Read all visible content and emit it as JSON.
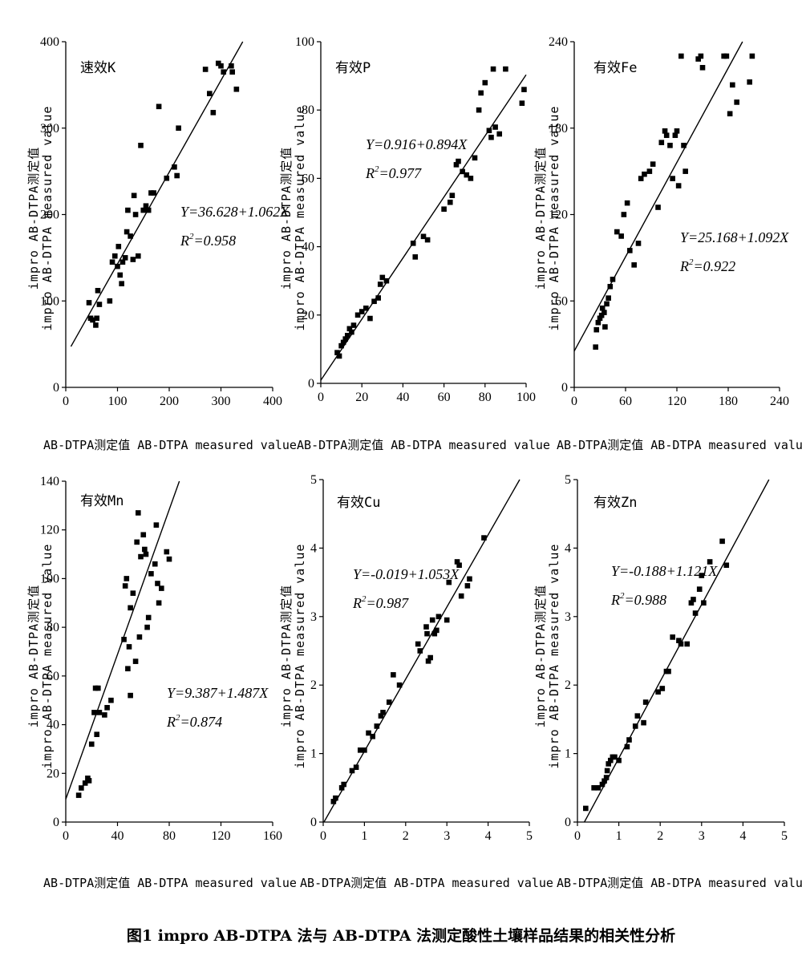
{
  "figure": {
    "caption": "图1  impro AB-DTPA 法与 AB-DTPA 法测定酸性土壤样品结果的相关性分析"
  },
  "chart_data": [
    {
      "type": "scatter",
      "title": "速效K",
      "xlabel": "AB-DTPA测定值 AB-DTPA measured value",
      "ylabel_lines": [
        "impro AB-DTPA测定值",
        "impro AB-DTPA measured value"
      ],
      "xlim": [
        0,
        400
      ],
      "ylim": [
        0,
        400
      ],
      "xticks": [
        0,
        100,
        200,
        300,
        400
      ],
      "yticks": [
        0,
        100,
        200,
        300,
        400
      ],
      "equation": "Y=36.628+1.062X",
      "r2_prefix": "R",
      "r2_value": "=0.958",
      "fit": {
        "intercept": 36.628,
        "slope": 1.062
      },
      "points": [
        [
          45,
          98
        ],
        [
          48,
          80
        ],
        [
          52,
          78
        ],
        [
          58,
          72
        ],
        [
          60,
          80
        ],
        [
          62,
          112
        ],
        [
          65,
          96
        ],
        [
          85,
          100
        ],
        [
          90,
          145
        ],
        [
          95,
          152
        ],
        [
          100,
          140
        ],
        [
          102,
          163
        ],
        [
          105,
          130
        ],
        [
          108,
          120
        ],
        [
          110,
          145
        ],
        [
          115,
          150
        ],
        [
          118,
          180
        ],
        [
          120,
          205
        ],
        [
          125,
          175
        ],
        [
          130,
          148
        ],
        [
          132,
          222
        ],
        [
          135,
          200
        ],
        [
          140,
          152
        ],
        [
          145,
          280
        ],
        [
          150,
          205
        ],
        [
          155,
          210
        ],
        [
          160,
          205
        ],
        [
          165,
          225
        ],
        [
          170,
          225
        ],
        [
          180,
          325
        ],
        [
          195,
          242
        ],
        [
          210,
          255
        ],
        [
          215,
          245
        ],
        [
          218,
          300
        ],
        [
          270,
          368
        ],
        [
          278,
          340
        ],
        [
          285,
          318
        ],
        [
          295,
          375
        ],
        [
          300,
          372
        ],
        [
          305,
          365
        ],
        [
          320,
          372
        ],
        [
          322,
          365
        ],
        [
          330,
          345
        ]
      ]
    },
    {
      "type": "scatter",
      "title": "有效P",
      "xlabel": "AB-DTPA测定值 AB-DTPA measured value",
      "ylabel_lines": [
        "impro AB-DTPA测定值",
        "impro AB-DTPA measured value"
      ],
      "xlim": [
        0,
        100
      ],
      "ylim": [
        0,
        100
      ],
      "xticks": [
        0,
        20,
        40,
        60,
        80,
        100
      ],
      "yticks": [
        0,
        20,
        40,
        60,
        80,
        100
      ],
      "equation": "Y=0.916+0.894X",
      "r2_prefix": "R",
      "r2_value": "=0.977",
      "fit": {
        "intercept": 0.916,
        "slope": 0.894
      },
      "points": [
        [
          8,
          9
        ],
        [
          9,
          8
        ],
        [
          10,
          11
        ],
        [
          11,
          12
        ],
        [
          12,
          13
        ],
        [
          13,
          14
        ],
        [
          14,
          16
        ],
        [
          15,
          15
        ],
        [
          16,
          17
        ],
        [
          18,
          20
        ],
        [
          20,
          21
        ],
        [
          22,
          22
        ],
        [
          24,
          19
        ],
        [
          26,
          24
        ],
        [
          28,
          25
        ],
        [
          29,
          29
        ],
        [
          30,
          31
        ],
        [
          32,
          30
        ],
        [
          45,
          41
        ],
        [
          46,
          37
        ],
        [
          50,
          43
        ],
        [
          52,
          42
        ],
        [
          60,
          51
        ],
        [
          63,
          53
        ],
        [
          64,
          55
        ],
        [
          66,
          64
        ],
        [
          67,
          65
        ],
        [
          69,
          62
        ],
        [
          71,
          61
        ],
        [
          73,
          60
        ],
        [
          75,
          66
        ],
        [
          77,
          80
        ],
        [
          78,
          85
        ],
        [
          80,
          88
        ],
        [
          82,
          74
        ],
        [
          83,
          72
        ],
        [
          84,
          92
        ],
        [
          85,
          75
        ],
        [
          87,
          73
        ],
        [
          90,
          92
        ],
        [
          98,
          82
        ],
        [
          99,
          86
        ]
      ]
    },
    {
      "type": "scatter",
      "title": "有效Fe",
      "xlabel": "AB-DTPA测定值 AB-DTPA measured value",
      "ylabel_lines": [
        "impro AB-DTPA测定值",
        "impro AB-DTPA measured value"
      ],
      "xlim": [
        0,
        240
      ],
      "ylim": [
        0,
        240
      ],
      "xticks": [
        0,
        60,
        120,
        180,
        240
      ],
      "yticks": [
        0,
        60,
        120,
        180,
        240
      ],
      "equation": "Y=25.168+1.092X",
      "r2_prefix": "R",
      "r2_value": "=0.922",
      "fit": {
        "intercept": 25.168,
        "slope": 1.092
      },
      "points": [
        [
          25,
          28
        ],
        [
          26,
          40
        ],
        [
          28,
          45
        ],
        [
          30,
          48
        ],
        [
          32,
          50
        ],
        [
          33,
          55
        ],
        [
          35,
          52
        ],
        [
          36,
          42
        ],
        [
          38,
          58
        ],
        [
          40,
          62
        ],
        [
          42,
          70
        ],
        [
          45,
          75
        ],
        [
          50,
          108
        ],
        [
          55,
          105
        ],
        [
          58,
          120
        ],
        [
          62,
          128
        ],
        [
          65,
          95
        ],
        [
          70,
          85
        ],
        [
          75,
          100
        ],
        [
          78,
          145
        ],
        [
          82,
          148
        ],
        [
          88,
          150
        ],
        [
          92,
          155
        ],
        [
          98,
          125
        ],
        [
          102,
          170
        ],
        [
          106,
          178
        ],
        [
          108,
          175
        ],
        [
          112,
          168
        ],
        [
          115,
          145
        ],
        [
          118,
          175
        ],
        [
          120,
          178
        ],
        [
          122,
          140
        ],
        [
          125,
          230
        ],
        [
          128,
          168
        ],
        [
          130,
          150
        ],
        [
          145,
          228
        ],
        [
          148,
          230
        ],
        [
          150,
          222
        ],
        [
          175,
          230
        ],
        [
          178,
          230
        ],
        [
          182,
          190
        ],
        [
          185,
          210
        ],
        [
          190,
          198
        ],
        [
          205,
          212
        ],
        [
          208,
          230
        ]
      ]
    },
    {
      "type": "scatter",
      "title": "有效Mn",
      "xlabel": "AB-DTPA测定值 AB-DTPA measured value",
      "ylabel_lines": [
        "impro AB-DTPA测定值",
        "impro AB-DTPA measured value"
      ],
      "xlim": [
        0,
        160
      ],
      "ylim": [
        0,
        140
      ],
      "xticks": [
        0,
        40,
        80,
        120,
        160
      ],
      "yticks": [
        0,
        20,
        40,
        60,
        80,
        100,
        120,
        140
      ],
      "equation": "Y=9.387+1.487X",
      "r2_prefix": "R",
      "r2_value": "=0.874",
      "fit": {
        "intercept": 9.387,
        "slope": 1.487
      },
      "points": [
        [
          10,
          11
        ],
        [
          12,
          14
        ],
        [
          15,
          16
        ],
        [
          17,
          18
        ],
        [
          18,
          17
        ],
        [
          20,
          32
        ],
        [
          22,
          45
        ],
        [
          23,
          55
        ],
        [
          24,
          36
        ],
        [
          25,
          55
        ],
        [
          26,
          45
        ],
        [
          30,
          44
        ],
        [
          32,
          47
        ],
        [
          35,
          50
        ],
        [
          45,
          75
        ],
        [
          46,
          97
        ],
        [
          47,
          100
        ],
        [
          48,
          63
        ],
        [
          49,
          72
        ],
        [
          50,
          88
        ],
        [
          50,
          52
        ],
        [
          52,
          94
        ],
        [
          54,
          66
        ],
        [
          55,
          115
        ],
        [
          56,
          127
        ],
        [
          57,
          76
        ],
        [
          58,
          109
        ],
        [
          60,
          118
        ],
        [
          61,
          112
        ],
        [
          62,
          110
        ],
        [
          63,
          80
        ],
        [
          64,
          84
        ],
        [
          66,
          102
        ],
        [
          69,
          106
        ],
        [
          70,
          122
        ],
        [
          71,
          98
        ],
        [
          72,
          90
        ],
        [
          74,
          96
        ],
        [
          78,
          111
        ],
        [
          80,
          108
        ]
      ]
    },
    {
      "type": "scatter",
      "title": "有效Cu",
      "xlabel": "AB-DTPA测定值 AB-DTPA measured value",
      "ylabel_lines": [
        "impro AB-DTPA测定值",
        "impro AB-DTPA measured value"
      ],
      "xlim": [
        0,
        5
      ],
      "ylim": [
        0,
        5
      ],
      "xticks": [
        0,
        1,
        2,
        3,
        4,
        5
      ],
      "yticks": [
        0,
        1,
        2,
        3,
        4,
        5
      ],
      "equation": "Y=-0.019+1.053X",
      "r2_prefix": "R",
      "r2_value": "=0.987",
      "fit": {
        "intercept": -0.019,
        "slope": 1.053
      },
      "points": [
        [
          0.25,
          0.3
        ],
        [
          0.3,
          0.35
        ],
        [
          0.45,
          0.5
        ],
        [
          0.5,
          0.55
        ],
        [
          0.7,
          0.75
        ],
        [
          0.8,
          0.8
        ],
        [
          0.9,
          1.05
        ],
        [
          1.0,
          1.05
        ],
        [
          1.1,
          1.3
        ],
        [
          1.2,
          1.25
        ],
        [
          1.3,
          1.4
        ],
        [
          1.4,
          1.55
        ],
        [
          1.45,
          1.6
        ],
        [
          1.6,
          1.75
        ],
        [
          1.7,
          2.15
        ],
        [
          1.85,
          2.0
        ],
        [
          2.3,
          2.6
        ],
        [
          2.35,
          2.5
        ],
        [
          2.5,
          2.85
        ],
        [
          2.52,
          2.75
        ],
        [
          2.55,
          2.35
        ],
        [
          2.6,
          2.4
        ],
        [
          2.65,
          2.95
        ],
        [
          2.7,
          2.75
        ],
        [
          2.75,
          2.8
        ],
        [
          2.8,
          3.0
        ],
        [
          3.0,
          2.95
        ],
        [
          3.05,
          3.5
        ],
        [
          3.25,
          3.8
        ],
        [
          3.3,
          3.75
        ],
        [
          3.35,
          3.3
        ],
        [
          3.5,
          3.45
        ],
        [
          3.55,
          3.55
        ],
        [
          3.9,
          4.15
        ]
      ]
    },
    {
      "type": "scatter",
      "title": "有效Zn",
      "xlabel": "AB-DTPA测定值 AB-DTPA measured value",
      "ylabel_lines": [
        "impro AB-DTPA测定值",
        "impro AB-DTPA measured value"
      ],
      "xlim": [
        0,
        5
      ],
      "ylim": [
        0,
        5
      ],
      "xticks": [
        0,
        1,
        2,
        3,
        4,
        5
      ],
      "yticks": [
        0,
        1,
        2,
        3,
        4,
        5
      ],
      "equation": "Y=-0.188+1.121X",
      "r2_prefix": "R",
      "r2_value": "=0.988",
      "fit": {
        "intercept": -0.188,
        "slope": 1.121
      },
      "points": [
        [
          0.2,
          0.2
        ],
        [
          0.4,
          0.5
        ],
        [
          0.5,
          0.5
        ],
        [
          0.6,
          0.55
        ],
        [
          0.65,
          0.6
        ],
        [
          0.7,
          0.65
        ],
        [
          0.72,
          0.75
        ],
        [
          0.75,
          0.85
        ],
        [
          0.8,
          0.9
        ],
        [
          0.85,
          0.95
        ],
        [
          0.9,
          0.95
        ],
        [
          1.0,
          0.9
        ],
        [
          1.2,
          1.1
        ],
        [
          1.25,
          1.2
        ],
        [
          1.4,
          1.4
        ],
        [
          1.45,
          1.55
        ],
        [
          1.6,
          1.45
        ],
        [
          1.65,
          1.75
        ],
        [
          1.95,
          1.9
        ],
        [
          2.05,
          1.95
        ],
        [
          2.15,
          2.2
        ],
        [
          2.2,
          2.2
        ],
        [
          2.3,
          2.7
        ],
        [
          2.45,
          2.65
        ],
        [
          2.5,
          2.6
        ],
        [
          2.65,
          2.6
        ],
        [
          2.75,
          3.2
        ],
        [
          2.8,
          3.25
        ],
        [
          2.85,
          3.05
        ],
        [
          2.95,
          3.4
        ],
        [
          3.0,
          3.6
        ],
        [
          3.05,
          3.2
        ],
        [
          3.2,
          3.8
        ],
        [
          3.5,
          4.1
        ],
        [
          3.6,
          3.75
        ]
      ]
    }
  ]
}
